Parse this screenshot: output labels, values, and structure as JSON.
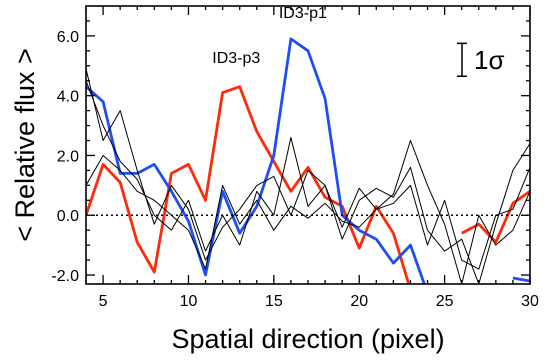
{
  "chart_data": {
    "type": "line",
    "xlabel": "Spatial direction (pixel)",
    "ylabel": "< Relative flux >",
    "xlim": [
      4,
      30
    ],
    "ylim": [
      -2.3,
      7.0
    ],
    "x_ticks": [
      5,
      10,
      15,
      20,
      25,
      30
    ],
    "x_tick_labels": [
      "5",
      "10",
      "15",
      "20",
      "25",
      "30"
    ],
    "y_ticks": [
      -2.0,
      0.0,
      2.0,
      4.0,
      6.0
    ],
    "y_tick_labels": [
      "-2.0",
      "0.0",
      "2.0",
      "4.0",
      "6.0"
    ],
    "grid": false,
    "zero_line": {
      "y": 0,
      "style": "dotted",
      "color": "#000000"
    },
    "error_bar": {
      "label": "1σ",
      "half_height": 0.55,
      "position": "top-right"
    },
    "annotations": [
      {
        "text": "ID3-p1",
        "x": 16.7,
        "y": 6.6
      },
      {
        "text": "ID3-p3",
        "x": 12.8,
        "y": 5.1
      }
    ],
    "series": [
      {
        "color": "#ff2a0a",
        "width": 2.8,
        "x": [
          4,
          5,
          6,
          7,
          8,
          9,
          10,
          11,
          12,
          13,
          14,
          15,
          16,
          17,
          18,
          19,
          20,
          21,
          22,
          23
        ],
        "y": [
          0.0,
          1.7,
          1.1,
          -0.9,
          -1.9,
          1.4,
          1.7,
          0.5,
          4.1,
          4.3,
          2.8,
          1.8,
          0.8,
          1.6,
          0.6,
          0.3,
          -1.1,
          0.3,
          -0.6,
          -2.5
        ]
      },
      {
        "color": "#ff2a0a",
        "width": 2.8,
        "x": [
          26,
          27,
          28,
          29,
          30
        ],
        "y": [
          -0.6,
          -0.3,
          -0.9,
          0.4,
          0.8
        ]
      },
      {
        "color": "#1f4ff2",
        "width": 2.8,
        "x": [
          4,
          5,
          6,
          7,
          8,
          9,
          10,
          11,
          12,
          13,
          14,
          15,
          16,
          17,
          18,
          19,
          20,
          21,
          22,
          23,
          24
        ],
        "y": [
          4.3,
          3.8,
          1.4,
          1.4,
          1.7,
          0.8,
          -0.2,
          -2.0,
          0.8,
          -0.6,
          0.3,
          2.0,
          5.9,
          5.5,
          3.9,
          0.0,
          -0.5,
          -0.8,
          -1.6,
          -1.0,
          -2.6
        ]
      },
      {
        "color": "#1f4ff2",
        "width": 2.8,
        "x": [
          29,
          30
        ],
        "y": [
          -2.1,
          -2.2
        ]
      },
      {
        "color": "#000000",
        "width": 1,
        "x": [
          4,
          5,
          6,
          7,
          8,
          9,
          10,
          11,
          12,
          13,
          14,
          15,
          16,
          17,
          18,
          19,
          20,
          21,
          22,
          23,
          24,
          25,
          26,
          27,
          28,
          29,
          30
        ],
        "y": [
          4.9,
          2.5,
          3.5,
          1.5,
          -0.3,
          1.0,
          0.2,
          -1.5,
          -0.4,
          0.2,
          1.0,
          1.3,
          0.0,
          1.5,
          1.0,
          -0.4,
          0.9,
          0.2,
          0.7,
          2.5,
          1.0,
          -0.3,
          -2.3,
          0.0,
          -1.0,
          -0.5,
          0.8
        ]
      },
      {
        "color": "#000000",
        "width": 1,
        "x": [
          4,
          5,
          6,
          7,
          8,
          9,
          10,
          11,
          12,
          13,
          14,
          15,
          16,
          17,
          18,
          19,
          20,
          21,
          22,
          23,
          24,
          25,
          26,
          27,
          28,
          29,
          30
        ],
        "y": [
          1.0,
          2.0,
          1.5,
          0.8,
          0.5,
          0.0,
          -0.5,
          -1.8,
          1.0,
          -0.3,
          0.5,
          -0.5,
          0.3,
          -0.1,
          0.4,
          -0.2,
          -0.4,
          0.2,
          0.4,
          1.0,
          -1.0,
          0.5,
          -1.5,
          -1.8,
          0.0,
          0.2,
          1.6
        ]
      },
      {
        "color": "#000000",
        "width": 1,
        "x": [
          4,
          5,
          6,
          7,
          8,
          9,
          10,
          11,
          12,
          13,
          14,
          15,
          16,
          17,
          18,
          19,
          20,
          21,
          22,
          23,
          24,
          25,
          26,
          27,
          28,
          29,
          30
        ],
        "y": [
          4.5,
          3.0,
          1.8,
          1.2,
          0.0,
          -0.5,
          0.5,
          -1.2,
          0.0,
          -1.0,
          0.8,
          0.0,
          2.6,
          0.3,
          1.0,
          -0.8,
          0.5,
          0.9,
          0.6,
          1.6,
          -0.5,
          -1.2,
          -0.8,
          -2.3,
          -0.3,
          1.5,
          2.4
        ]
      }
    ]
  }
}
